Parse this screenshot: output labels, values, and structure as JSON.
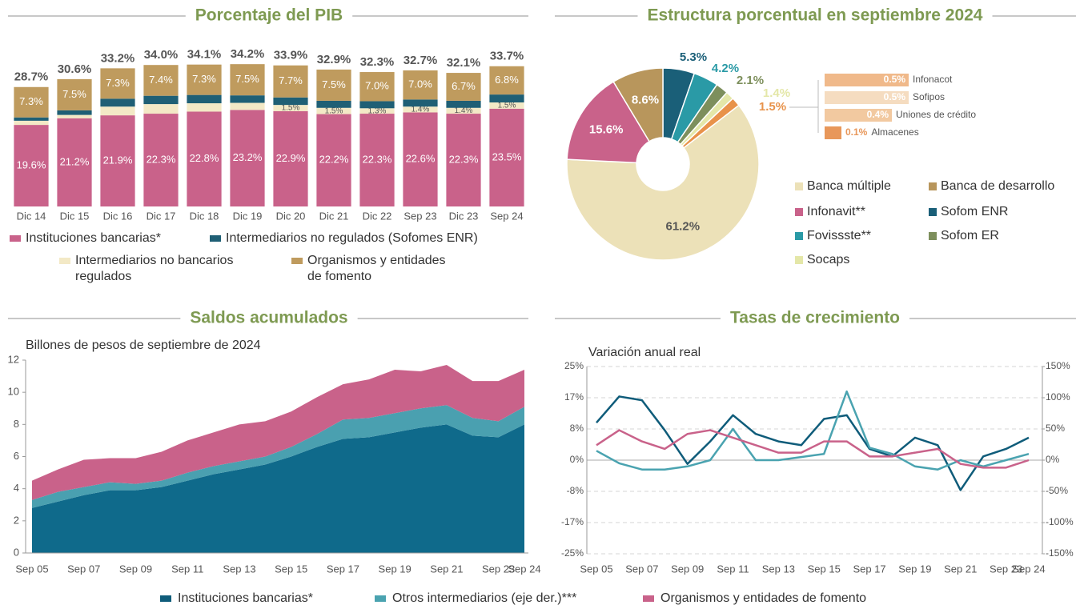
{
  "chart_data": [
    {
      "type": "bar",
      "stacked": true,
      "title": "Porcentaje del PIB",
      "categories": [
        "Dic 14",
        "Dic 15",
        "Dic 16",
        "Dic 17",
        "Dic 18",
        "Dic 19",
        "Dic 20",
        "Dic 21",
        "Dic 22",
        "Sep 23",
        "Dic 23",
        "Sep 24"
      ],
      "series": [
        {
          "name": "Instituciones bancarias*",
          "color": "#c9628a",
          "values": [
            19.6,
            21.2,
            21.9,
            22.3,
            22.8,
            23.2,
            22.9,
            22.2,
            22.3,
            22.6,
            22.3,
            23.5
          ],
          "value_labels": [
            "19.6%",
            "21.2%",
            "21.9%",
            "22.3%",
            "22.8%",
            "23.2%",
            "22.9%",
            "22.2%",
            "22.3%",
            "22.6%",
            "22.3%",
            "23.5%"
          ]
        },
        {
          "name": "Intermediarios no regulados (Sofomes ENR)",
          "color": "#1f5f75",
          "values": [
            0.8,
            1.1,
            1.9,
            2.0,
            2.0,
            1.8,
            1.8,
            1.7,
            1.7,
            1.7,
            1.7,
            1.9
          ]
        },
        {
          "name": "Intermediarios no bancarios regulados",
          "color": "#f3e9c6",
          "values": [
            1.0,
            0.8,
            2.1,
            2.3,
            2.0,
            1.7,
            1.5,
            1.5,
            1.3,
            1.4,
            1.4,
            1.5
          ],
          "value_labels": [
            null,
            null,
            null,
            null,
            null,
            null,
            "1.5%",
            "1.5%",
            "1.3%",
            "1.4%",
            "1.4%",
            "1.5%"
          ]
        },
        {
          "name": "Organismos y entidades de fomento",
          "color": "#bf9b5e",
          "values": [
            7.3,
            7.5,
            7.3,
            7.4,
            7.3,
            7.5,
            7.7,
            7.5,
            7.0,
            7.0,
            6.7,
            6.8
          ],
          "value_labels": [
            "7.3%",
            "7.5%",
            "7.3%",
            "7.4%",
            "7.3%",
            "7.5%",
            "7.7%",
            "7.5%",
            "7.0%",
            "7.0%",
            "6.7%",
            "6.8%"
          ]
        }
      ],
      "total_labels": [
        "28.7%",
        "30.6%",
        "33.2%",
        "34.0%",
        "34.1%",
        "34.2%",
        "33.9%",
        "32.9%",
        "32.3%",
        "32.7%",
        "32.1%",
        "33.7%"
      ]
    },
    {
      "type": "pie",
      "donut": true,
      "title": "Estructura porcentual en septiembre 2024",
      "categories": [
        "Sofom ENR",
        "Fovissste**",
        "Sofom ER",
        "Socaps",
        null,
        "Banca múltiple",
        "Infonavit**",
        "Banca de desarrollo"
      ],
      "values": [
        5.3,
        4.2,
        2.1,
        1.4,
        1.5,
        61.2,
        15.6,
        8.6
      ],
      "value_labels": [
        "5.3%",
        "4.2%",
        "2.1%",
        "1.4%",
        "1.5%",
        "61.2%",
        "15.6%",
        "8.6%"
      ],
      "colors": [
        "#1a5f78",
        "#2a9aa6",
        "#7d8f5c",
        "#e4e7a8",
        "#e8924a",
        "#ece1b8",
        "#c9628a",
        "#b8965c"
      ]
    },
    {
      "type": "bar",
      "orientation": "horizontal",
      "categories": [
        "Infonacot",
        "Sofipos",
        "Uniones de crédito",
        "Almacenes"
      ],
      "values": [
        0.5,
        0.5,
        0.4,
        0.1
      ],
      "value_labels": [
        "0.5%",
        "0.5%",
        "0.4%",
        "0.1%"
      ],
      "colors": [
        "#f0b98a",
        "#f5dcc0",
        "#f2c9a0",
        "#e8975a"
      ]
    },
    {
      "type": "area",
      "stacked": true,
      "title": "Saldos acumulados",
      "subtitle": "Billones de pesos de septiembre de 2024",
      "categories": [
        "Sep 05",
        null,
        "Sep 07",
        null,
        "Sep 09",
        null,
        "Sep 11",
        null,
        "Sep 13",
        null,
        "Sep 15",
        null,
        "Sep 17",
        null,
        "Sep 19",
        null,
        "Sep 21",
        null,
        "Sep 23",
        "Sep 24"
      ],
      "series": [
        {
          "color": "#0f6a8b",
          "values": [
            2.8,
            3.2,
            3.6,
            3.9,
            3.9,
            4.1,
            4.5,
            4.9,
            5.2,
            5.5,
            6.0,
            6.6,
            7.1,
            7.2,
            7.5,
            7.8,
            8.0,
            7.3,
            7.2,
            8.0
          ]
        },
        {
          "color": "#4aa0b0",
          "values": [
            0.5,
            0.6,
            0.5,
            0.5,
            0.4,
            0.4,
            0.5,
            0.5,
            0.5,
            0.5,
            0.6,
            0.8,
            1.2,
            1.2,
            1.2,
            1.2,
            1.2,
            1.1,
            1.0,
            1.1
          ]
        },
        {
          "color": "#c9628a",
          "values": [
            1.2,
            1.4,
            1.7,
            1.5,
            1.6,
            1.8,
            2.0,
            2.1,
            2.3,
            2.2,
            2.2,
            2.3,
            2.2,
            2.4,
            2.7,
            2.3,
            2.5,
            2.3,
            2.5,
            2.3
          ]
        }
      ],
      "ylim": [
        0,
        12
      ],
      "yticks": [
        0,
        2,
        4,
        6,
        8,
        10,
        12
      ]
    },
    {
      "type": "line",
      "title": "Tasas de crecimiento",
      "subtitle": "Variación anual real",
      "categories": [
        "Sep 05",
        null,
        "Sep 07",
        null,
        "Sep 09",
        null,
        "Sep 11",
        null,
        "Sep 13",
        null,
        "Sep 15",
        null,
        "Sep 17",
        null,
        "Sep 19",
        null,
        "Sep 21",
        null,
        "Sep 23",
        "Sep 24"
      ],
      "series": [
        {
          "name": "Instituciones bancarias*",
          "color": "#0f5c7a",
          "values": [
            10,
            17,
            16,
            8,
            -1,
            5,
            12,
            7,
            5,
            4,
            11,
            12,
            3,
            1,
            6,
            4,
            -8,
            1,
            3,
            6
          ]
        },
        {
          "name": "Otros intermediarios (eje der.)***",
          "color": "#4aa3b0",
          "axis": "y2",
          "values": [
            15,
            -5,
            -15,
            -15,
            -10,
            0,
            50,
            0,
            0,
            5,
            10,
            110,
            20,
            10,
            -10,
            -15,
            0,
            -10,
            0,
            10
          ]
        },
        {
          "name": "Organismos y entidades de fomento",
          "color": "#c9628a",
          "values": [
            4,
            8,
            5,
            3,
            7,
            8,
            6,
            4,
            2,
            2,
            5,
            5,
            1,
            1,
            2,
            3,
            -1,
            -2,
            -2,
            0
          ]
        }
      ],
      "ylim": [
        -25,
        25
      ],
      "yticks": [
        {
          "value": 25,
          "label": "25%"
        },
        {
          "value": 16.67,
          "label": "17%"
        },
        {
          "value": 8.33,
          "label": "8%"
        },
        {
          "value": 0,
          "label": "0%"
        },
        {
          "value": -8.33,
          "label": "-8%"
        },
        {
          "value": -16.67,
          "label": "-17%"
        },
        {
          "value": -25,
          "label": "-25%"
        }
      ],
      "y2lim": [
        -150,
        150
      ],
      "y2ticks": [
        {
          "value": 150,
          "label": "150%"
        },
        {
          "value": 100,
          "label": "100%"
        },
        {
          "value": 50,
          "label": "50%"
        },
        {
          "value": 0,
          "label": "0%"
        },
        {
          "value": -50,
          "label": "-50%"
        },
        {
          "value": -100,
          "label": "-100%"
        },
        {
          "value": -150,
          "label": "-150%"
        }
      ],
      "grid": true
    }
  ]
}
